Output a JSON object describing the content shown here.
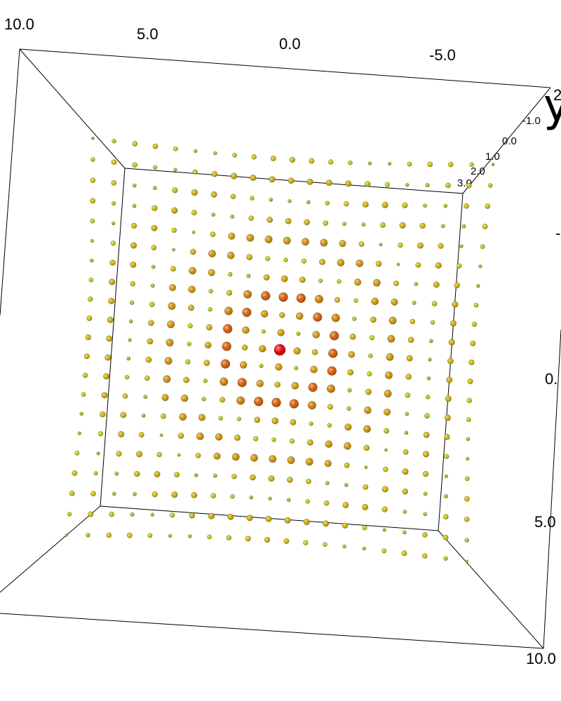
{
  "chart_data": {
    "type": "scatter",
    "title": "",
    "axes": {
      "top_ticks": [
        "10.0",
        "5.0",
        "0.0",
        "-5.0"
      ],
      "right_ticks": [
        "0.",
        "5.0",
        "10.0"
      ],
      "z_ticks": [
        "-1.0",
        "0.0",
        "1.0",
        "2.0",
        "3.0"
      ],
      "y_axis_title": "y",
      "partial_tick_2": "2",
      "partial_tick_dash": "-"
    },
    "grid": {
      "x_range": [
        -10,
        10
      ],
      "y_range": [
        -10,
        10
      ],
      "x_step": 1,
      "y_step": 1
    },
    "value_function": "radial ripple: v = cos(r) * exp(-0.1 r), r = sqrt(x^2 + y^2); peak 1.0 at origin",
    "points_peak": {
      "x": 0,
      "y": 0,
      "value": 1.0
    },
    "colormap": [
      "#00c020",
      "#c8c800",
      "#d08000",
      "#e00000"
    ],
    "grid_on": false,
    "legend": "none"
  }
}
